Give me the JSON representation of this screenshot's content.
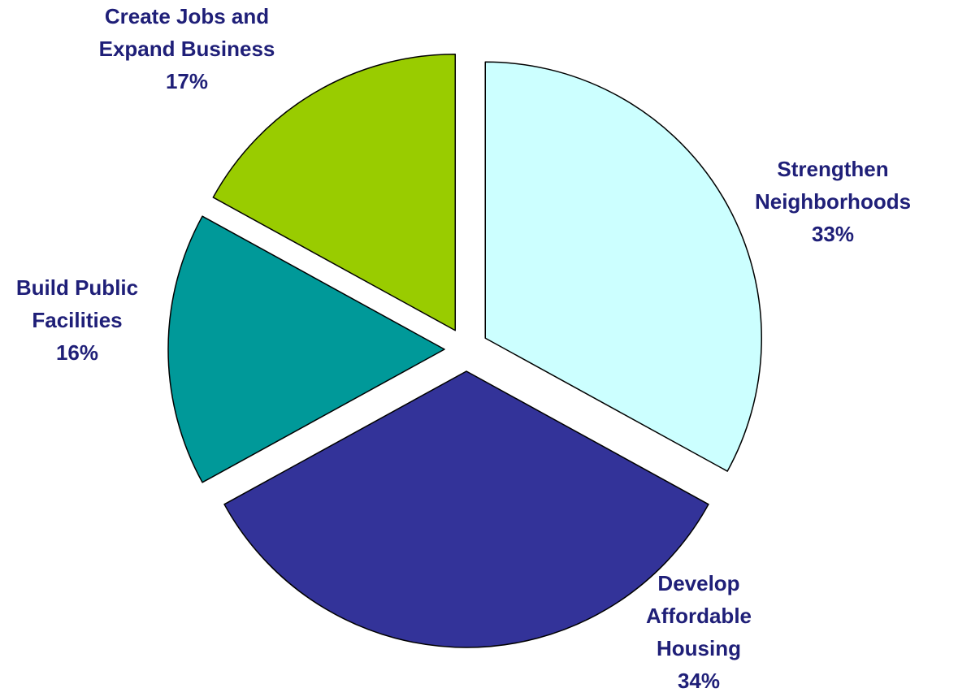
{
  "chart_data": {
    "type": "pie",
    "title": "",
    "slices": [
      {
        "label": [
          "Strengthen",
          "Neighborhoods"
        ],
        "value": 33,
        "display": "33%",
        "color": "#ccffff"
      },
      {
        "label": [
          "Develop",
          "Affordable",
          "Housing"
        ],
        "value": 34,
        "display": "34%",
        "color": "#333399"
      },
      {
        "label": [
          "Build Public",
          "Facilities"
        ],
        "value": 16,
        "display": "16%",
        "color": "#009999"
      },
      {
        "label": [
          "Create Jobs and",
          "Expand Business"
        ],
        "value": 17,
        "display": "17%",
        "color": "#99cc00"
      }
    ],
    "start_angle_deg": 0,
    "direction": "clockwise",
    "exploded": true,
    "legend": "none",
    "label_color": "#1f1f78",
    "outline_color": "#000000"
  }
}
